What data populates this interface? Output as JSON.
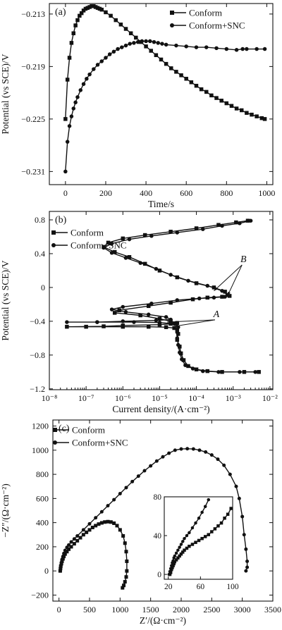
{
  "chart_data": [
    {
      "type": "line",
      "panel_label": "(a)",
      "xlabel": "Time/s",
      "ylabel": "Potential (vs SCE)/V",
      "xlim": [
        -80,
        1030
      ],
      "ylim": [
        -0.2325,
        -0.2118
      ],
      "xticks": [
        0,
        200,
        400,
        600,
        800,
        1000
      ],
      "xtick_labels": [
        "0",
        "200",
        "400",
        "600",
        "800",
        "1000"
      ],
      "yticks": [
        -0.231,
        -0.225,
        -0.219,
        -0.213
      ],
      "ytick_labels": [
        "−0.231",
        "−0.225",
        "−0.219",
        "−0.213"
      ],
      "legend_position": "top-right",
      "series": [
        {
          "name": "Conform",
          "marker": "square",
          "x": [
            0,
            10,
            20,
            30,
            40,
            50,
            60,
            70,
            80,
            90,
            100,
            110,
            120,
            130,
            140,
            150,
            160,
            170,
            180,
            200,
            225,
            250,
            275,
            300,
            325,
            350,
            375,
            400,
            425,
            450,
            475,
            500,
            525,
            550,
            575,
            600,
            625,
            650,
            675,
            700,
            725,
            750,
            775,
            800,
            825,
            850,
            875,
            900,
            925,
            950,
            975,
            990
          ],
          "y": [
            -0.225,
            -0.2205,
            -0.218,
            -0.2163,
            -0.2152,
            -0.2143,
            -0.2137,
            -0.2132,
            -0.2129,
            -0.2126,
            -0.2124,
            -0.2123,
            -0.2122,
            -0.2121,
            -0.2121,
            -0.2122,
            -0.2123,
            -0.2124,
            -0.2125,
            -0.2128,
            -0.2132,
            -0.2137,
            -0.2142,
            -0.2147,
            -0.2152,
            -0.2157,
            -0.2162,
            -0.2167,
            -0.2172,
            -0.2177,
            -0.2182,
            -0.2187,
            -0.2192,
            -0.2196,
            -0.22,
            -0.2204,
            -0.2208,
            -0.2212,
            -0.2216,
            -0.2219,
            -0.2223,
            -0.2226,
            -0.2229,
            -0.2232,
            -0.2235,
            -0.2238,
            -0.224,
            -0.2243,
            -0.2245,
            -0.2247,
            -0.2249,
            -0.225
          ]
        },
        {
          "name": "Conform+SNC",
          "marker": "circle",
          "x": [
            0,
            10,
            20,
            30,
            40,
            50,
            60,
            75,
            90,
            105,
            120,
            140,
            160,
            180,
            200,
            220,
            240,
            260,
            280,
            300,
            320,
            340,
            360,
            380,
            400,
            420,
            440,
            460,
            480,
            500,
            550,
            600,
            650,
            700,
            750,
            800,
            850,
            880,
            900,
            950,
            990
          ],
          "y": [
            -0.231,
            -0.2276,
            -0.2258,
            -0.2247,
            -0.2238,
            -0.2231,
            -0.2225,
            -0.2217,
            -0.221,
            -0.2204,
            -0.2199,
            -0.2193,
            -0.2188,
            -0.2184,
            -0.218,
            -0.2176,
            -0.2173,
            -0.217,
            -0.2168,
            -0.2166,
            -0.2164,
            -0.2163,
            -0.2162,
            -0.2161,
            -0.2161,
            -0.2161,
            -0.2162,
            -0.2163,
            -0.2164,
            -0.2165,
            -0.2166,
            -0.2167,
            -0.2168,
            -0.2168,
            -0.2169,
            -0.217,
            -0.2171,
            -0.217,
            -0.217,
            -0.217,
            -0.217
          ]
        }
      ]
    },
    {
      "type": "line",
      "panel_label": "(b)",
      "xlabel": "Current density/(A·cm⁻²)",
      "ylabel": "Potential (vs SCE)/V",
      "x_scale": "log",
      "xlim": [
        1e-08,
        0.012
      ],
      "ylim": [
        -1.21,
        0.9
      ],
      "xticks": [
        1e-08,
        1e-07,
        1e-06,
        1e-05,
        0.0001,
        0.001,
        0.01
      ],
      "xtick_labels": [
        "10⁻⁸",
        "10⁻⁷",
        "10⁻⁶",
        "10⁻⁵",
        "10⁻⁴",
        "10⁻³",
        "10⁻²"
      ],
      "yticks": [
        -1.2,
        -0.8,
        -0.4,
        0,
        0.4,
        0.8
      ],
      "ytick_labels": [
        "−1.2",
        "−0.8",
        "−0.4",
        "0",
        "0.4",
        "0.8"
      ],
      "legend_position": "top-left",
      "annotations": [
        {
          "text": "B",
          "x": 0.0019,
          "y": 0.3
        },
        {
          "text": "A",
          "x": 0.00035,
          "y": -0.35
        }
      ],
      "series": [
        {
          "name": "Conform",
          "marker": "square",
          "x": [
            0.005,
            0.002,
            0.0005,
            0.0002,
            0.0001,
            6e-05,
            4.5e-05,
            3.8e-05,
            3.5e-05,
            3e-05,
            3.2e-05,
            3e-05,
            2.5e-05,
            1.5e-05,
            5e-06,
            1e-06,
            1e-07,
            3e-08,
            3e-07,
            1e-06,
            1e-05,
            2e-05,
            3e-05,
            2e-05,
            1e-05,
            3e-06,
            6e-07,
            8e-07,
            5e-06,
            2e-05,
            8e-05,
            0.0002,
            0.0005,
            0.0008,
            0.0006,
            0.0003,
            0.0001,
            3e-05,
            1e-05,
            4e-06,
            1.5e-06,
            6e-07,
            3e-07,
            4e-07,
            1e-06,
            4e-06,
            2e-05,
            0.0001,
            0.0004,
            0.0012,
            0.0025
          ],
          "y": [
            -1.0,
            -1.0,
            -1.0,
            -0.99,
            -0.97,
            -0.93,
            -0.86,
            -0.78,
            -0.7,
            -0.62,
            -0.55,
            -0.5,
            -0.48,
            -0.47,
            -0.465,
            -0.465,
            -0.465,
            -0.465,
            -0.46,
            -0.45,
            -0.44,
            -0.43,
            -0.42,
            -0.4,
            -0.37,
            -0.33,
            -0.3,
            -0.27,
            -0.22,
            -0.18,
            -0.14,
            -0.12,
            -0.11,
            -0.1,
            -0.05,
            0.0,
            0.05,
            0.12,
            0.2,
            0.28,
            0.36,
            0.42,
            0.48,
            0.53,
            0.58,
            0.62,
            0.66,
            0.7,
            0.74,
            0.77,
            0.79
          ]
        },
        {
          "name": "Conform+SNC",
          "marker": "circle",
          "x": [
            0.004,
            0.0015,
            0.0004,
            0.00015,
            8e-05,
            5e-05,
            4e-05,
            3.5e-05,
            3.2e-05,
            3e-05,
            3e-05,
            3.2e-05,
            2.5e-05,
            1e-05,
            2e-06,
            2e-07,
            3e-08,
            2e-07,
            1e-06,
            8e-06,
            2e-05,
            1.5e-05,
            5e-06,
            1.2e-06,
            5e-07,
            1e-06,
            6e-06,
            3e-05,
            0.00012,
            0.0003,
            0.0006,
            0.0007,
            0.0005,
            0.0002,
            6e-05,
            2e-05,
            8e-06,
            3e-06,
            1.2e-06,
            5e-07,
            3e-07,
            5e-07,
            1.5e-06,
            6e-06,
            3e-05,
            0.00015,
            0.0005,
            0.0015,
            0.003
          ],
          "y": [
            -1.0,
            -1.0,
            -1.0,
            -0.99,
            -0.96,
            -0.92,
            -0.85,
            -0.77,
            -0.68,
            -0.6,
            -0.53,
            -0.47,
            -0.43,
            -0.415,
            -0.41,
            -0.41,
            -0.41,
            -0.41,
            -0.4,
            -0.39,
            -0.38,
            -0.35,
            -0.32,
            -0.29,
            -0.26,
            -0.23,
            -0.19,
            -0.15,
            -0.13,
            -0.12,
            -0.11,
            -0.09,
            -0.04,
            0.02,
            0.08,
            0.15,
            0.22,
            0.29,
            0.35,
            0.41,
            0.47,
            0.52,
            0.57,
            0.61,
            0.65,
            0.69,
            0.73,
            0.76,
            0.79
          ]
        }
      ]
    },
    {
      "type": "line",
      "panel_label": "(c)",
      "xlabel": "Z′/(Ω·cm⁻²)",
      "ylabel": "−Z″/(Ω·cm⁻²)",
      "xlim": [
        -100,
        3500
      ],
      "ylim": [
        -250,
        1250
      ],
      "xticks": [
        0,
        500,
        1000,
        1500,
        2000,
        2500,
        3000,
        3500
      ],
      "xtick_labels": [
        "0",
        "500",
        "1000",
        "1500",
        "2000",
        "2500",
        "3000",
        "3500"
      ],
      "yticks": [
        -200,
        0,
        200,
        400,
        600,
        800,
        1000,
        1200
      ],
      "ytick_labels": [
        "−200",
        "0",
        "200",
        "400",
        "600",
        "800",
        "1000",
        "1200"
      ],
      "legend_position": "top-left",
      "series": [
        {
          "name": "Conform",
          "marker": "square",
          "x": [
            20,
            25,
            30,
            40,
            50,
            65,
            80,
            100,
            130,
            160,
            200,
            250,
            300,
            350,
            400,
            450,
            500,
            550,
            600,
            650,
            700,
            750,
            800,
            850,
            900,
            950,
            1000,
            1050,
            1080,
            1100,
            1110,
            1110,
            1100,
            1080,
            1060,
            1040
          ],
          "y": [
            0,
            20,
            40,
            60,
            80,
            100,
            120,
            140,
            160,
            180,
            200,
            225,
            250,
            275,
            300,
            320,
            340,
            360,
            375,
            388,
            398,
            405,
            408,
            405,
            395,
            375,
            340,
            290,
            230,
            160,
            80,
            0,
            -50,
            -90,
            -120,
            -140
          ]
        },
        {
          "name": "Conform+SNC",
          "marker": "circle",
          "x": [
            20,
            25,
            30,
            40,
            50,
            65,
            80,
            100,
            130,
            160,
            200,
            250,
            300,
            400,
            500,
            600,
            700,
            800,
            900,
            1000,
            1100,
            1200,
            1300,
            1400,
            1500,
            1600,
            1700,
            1800,
            1900,
            2000,
            2100,
            2200,
            2300,
            2400,
            2500,
            2600,
            2700,
            2800,
            2900,
            2950,
            3000,
            3030,
            3060,
            3080,
            3080,
            3060
          ],
          "y": [
            0,
            25,
            45,
            70,
            95,
            120,
            145,
            170,
            195,
            215,
            240,
            265,
            290,
            340,
            390,
            440,
            490,
            540,
            590,
            640,
            690,
            740,
            785,
            830,
            870,
            910,
            945,
            975,
            1000,
            1010,
            1012,
            1010,
            1000,
            985,
            960,
            925,
            875,
            800,
            700,
            600,
            450,
            300,
            180,
            80,
            30,
            0
          ]
        }
      ],
      "inset": {
        "xlim": [
          15,
          100
        ],
        "ylim": [
          -5,
          80
        ],
        "xticks": [
          20,
          60,
          100
        ],
        "xtick_labels": [
          "20",
          "60",
          "100"
        ],
        "yticks": [
          0,
          40,
          80
        ],
        "ytick_labels": [
          "0",
          "40",
          "80"
        ],
        "series": [
          {
            "name": "Conform",
            "marker": "square",
            "x": [
              22,
              23,
              24,
              25,
              26,
              27,
              28,
              30,
              32,
              34,
              36,
              38,
              40,
              43,
              46,
              50,
              54,
              58,
              62,
              66,
              70,
              74,
              78,
              82,
              86,
              90,
              94,
              98
            ],
            "y": [
              0,
              2,
              5,
              7,
              9,
              11,
              13,
              15,
              17,
              19,
              21,
              23,
              25,
              27,
              29,
              31,
              33,
              35,
              37,
              39,
              41,
              44,
              47,
              50,
              53,
              58,
              62,
              68
            ]
          },
          {
            "name": "Conform+SNC",
            "marker": "circle",
            "x": [
              21,
              22,
              23,
              24,
              25,
              26,
              27,
              28,
              30,
              32,
              34,
              36,
              38,
              40,
              43,
              46,
              50,
              54,
              58,
              62,
              66,
              70
            ],
            "y": [
              0,
              3,
              6,
              9,
              12,
              14,
              17,
              19,
              22,
              25,
              28,
              31,
              34,
              37,
              40,
              43,
              48,
              53,
              58,
              64,
              70,
              77
            ]
          }
        ]
      }
    }
  ]
}
